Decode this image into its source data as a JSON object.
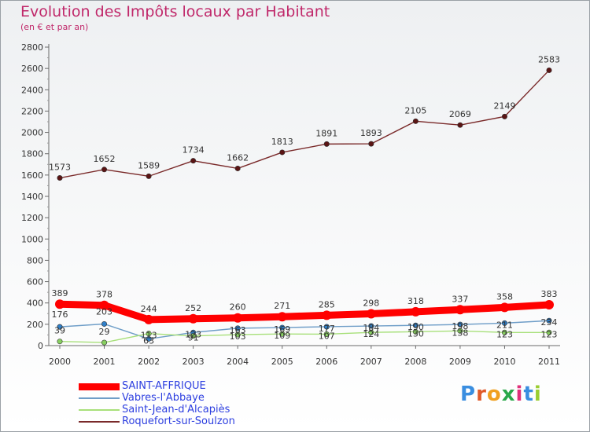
{
  "title": "Evolution des Impôts locaux par Habitant",
  "subtitle": "(en € et par an)",
  "brand": {
    "letters": [
      "P",
      "r",
      "o",
      "x",
      "i",
      "t",
      "i"
    ],
    "colors": [
      "#3a8ee0",
      "#e05a2a",
      "#f0a020",
      "#2aa84a",
      "#e0307a",
      "#3a8ee0",
      "#9acd32"
    ]
  },
  "chart_data": {
    "type": "line",
    "title": "Evolution des Impôts locaux par Habitant",
    "subtitle": "(en € et par an)",
    "xlabel": "",
    "ylabel": "",
    "categories": [
      "2000",
      "2001",
      "2002",
      "2003",
      "2004",
      "2005",
      "2006",
      "2007",
      "2008",
      "2009",
      "2010",
      "2011"
    ],
    "ylim": [
      0,
      2800
    ],
    "yticks": [
      0,
      200,
      400,
      600,
      800,
      1000,
      1200,
      1400,
      1600,
      1800,
      2000,
      2200,
      2400,
      2600,
      2800
    ],
    "grid": false,
    "legend_position": "bottom-left",
    "series": [
      {
        "name": "SAINT-AFFRIQUE",
        "color": "#ff0000",
        "marker": "#ff0000",
        "emphasis": true,
        "values": [
          389,
          378,
          244,
          252,
          260,
          271,
          285,
          298,
          318,
          337,
          358,
          383
        ],
        "labels_shown": true
      },
      {
        "name": "Vabres-l'Abbaye",
        "color": "#6f9ec8",
        "marker": "#2f7fc8",
        "emphasis": false,
        "values": [
          176,
          203,
          63,
          123,
          163,
          169,
          177,
          184,
          190,
          198,
          211,
          234
        ],
        "labels_shown": true
      },
      {
        "name": "Saint-Jean-d'Alcapiès",
        "color": "#a8e07a",
        "marker": "#88d060",
        "emphasis": false,
        "values": [
          39,
          29,
          113,
          91,
          103,
          109,
          107,
          124,
          130,
          138,
          123,
          123
        ],
        "labels_shown": true
      },
      {
        "name": "Roquefort-sur-Soulzon",
        "color": "#7a2a2a",
        "marker": "#5a1414",
        "emphasis": false,
        "values": [
          1573,
          1652,
          1589,
          1734,
          1662,
          1813,
          1891,
          1893,
          2105,
          2069,
          2149,
          2583
        ],
        "labels_shown": true
      }
    ],
    "data_labels": {
      "SAINT-AFFRIQUE": [
        "389",
        "378",
        "244",
        "252",
        "260",
        "271",
        "285",
        "298",
        "318",
        "337",
        "358",
        "383"
      ],
      "Vabres-l'Abbaye": [
        "176",
        "203",
        "63",
        "123",
        "163",
        "169",
        "177",
        "184",
        "190",
        "198",
        "211",
        "234"
      ],
      "Saint-Jean-d'Alcapiès": [
        "39",
        "29",
        "113",
        "91",
        "103",
        "109",
        "107",
        "124",
        "130",
        "138",
        "123",
        "123"
      ],
      "Roquefort-sur-Soulzon": [
        "1573",
        "1652",
        "1589",
        "1734",
        "1662",
        "1813",
        "1891",
        "1893",
        "2105",
        "2069",
        "2149",
        "2583"
      ]
    }
  }
}
